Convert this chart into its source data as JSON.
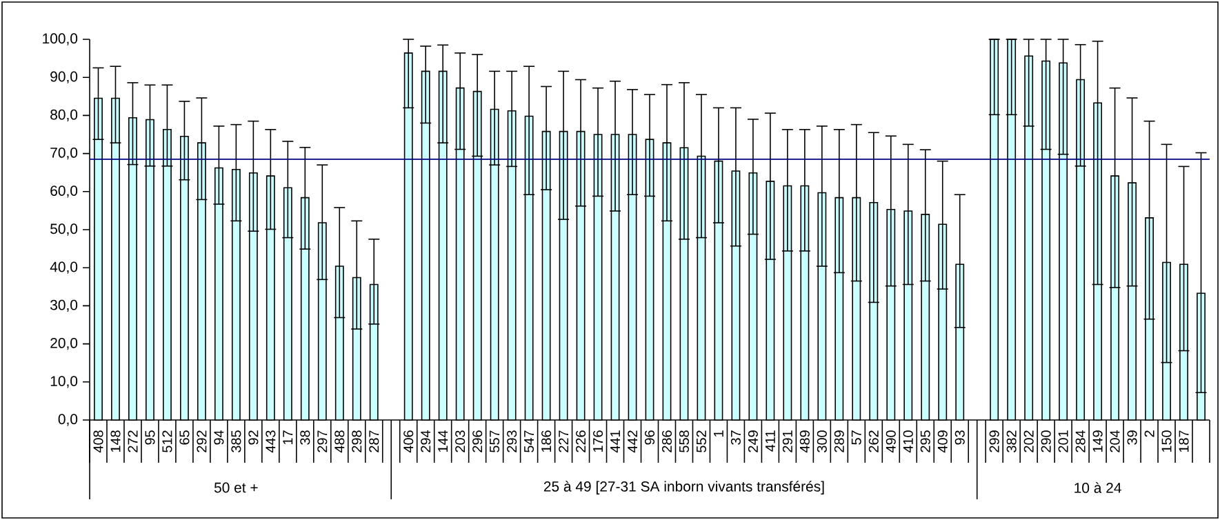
{
  "chart_data": {
    "type": "bar",
    "categories": [
      "408",
      "148",
      "272",
      "95",
      "512",
      "65",
      "292",
      "94",
      "385",
      "92",
      "443",
      "17",
      "38",
      "297",
      "488",
      "298",
      "287",
      null,
      "406",
      "294",
      "144",
      "203",
      "296",
      "557",
      "293",
      "547",
      "186",
      "227",
      "226",
      "176",
      "441",
      "442",
      "96",
      "286",
      "558",
      "552",
      "1",
      "37",
      "249",
      "411",
      "291",
      "489",
      "300",
      "289",
      "57",
      "262",
      "490",
      "410",
      "295",
      "409",
      "93",
      null,
      "299",
      "382",
      "202",
      "290",
      "201",
      "284",
      "149",
      "204",
      "39",
      "2",
      "150",
      "187",
      null
    ],
    "values": [
      84.5,
      84.5,
      79.4,
      78.9,
      76.3,
      74.5,
      72.8,
      66.2,
      65.8,
      64.9,
      64.1,
      61.0,
      58.4,
      51.8,
      40.4,
      37.4,
      35.6,
      null,
      96.4,
      91.6,
      91.6,
      87.2,
      86.3,
      81.6,
      81.2,
      79.8,
      75.8,
      75.8,
      75.8,
      75.0,
      75.0,
      75.0,
      73.7,
      72.8,
      71.5,
      69.3,
      68.0,
      65.4,
      64.9,
      62.7,
      61.5,
      61.5,
      59.7,
      58.4,
      58.4,
      57.1,
      55.3,
      54.9,
      54.0,
      51.4,
      40.9,
      null,
      100,
      100,
      95.6,
      94.3,
      93.8,
      89.4,
      83.3,
      64.1,
      62.3,
      53.1,
      41.4,
      40.9,
      33.3
    ],
    "errors": [
      [
        73.7,
        92.5
      ],
      [
        72.8,
        92.9
      ],
      [
        67.1,
        88.6
      ],
      [
        66.7,
        88.0
      ],
      [
        66.7,
        88.0
      ],
      [
        63.1,
        83.7
      ],
      [
        57.9,
        84.6
      ],
      [
        56.7,
        77.2
      ],
      [
        52.3,
        77.6
      ],
      [
        49.6,
        78.5
      ],
      [
        50.1,
        76.3
      ],
      [
        47.9,
        73.2
      ],
      [
        44.9,
        71.6
      ],
      [
        36.9,
        67.0
      ],
      [
        26.9,
        55.8
      ],
      [
        23.9,
        52.3
      ],
      [
        25.2,
        47.5
      ],
      null,
      [
        82.0,
        100
      ],
      [
        78.0,
        98.2
      ],
      [
        72.8,
        98.5
      ],
      [
        71.1,
        96.4
      ],
      [
        69.3,
        96.0
      ],
      [
        67.0,
        91.6
      ],
      [
        66.6,
        91.6
      ],
      [
        59.2,
        92.9
      ],
      [
        60.5,
        87.6
      ],
      [
        52.7,
        91.6
      ],
      [
        56.2,
        89.4
      ],
      [
        58.8,
        87.2
      ],
      [
        54.9,
        89.0
      ],
      [
        59.2,
        86.8
      ],
      [
        58.8,
        85.5
      ],
      [
        52.3,
        88.1
      ],
      [
        47.5,
        88.6
      ],
      [
        47.9,
        85.5
      ],
      [
        51.8,
        82.0
      ],
      [
        45.7,
        82.0
      ],
      [
        48.8,
        79.0
      ],
      [
        42.2,
        80.6
      ],
      [
        44.4,
        76.3
      ],
      [
        44.4,
        76.3
      ],
      [
        40.4,
        77.2
      ],
      [
        38.7,
        76.3
      ],
      [
        36.5,
        77.6
      ],
      [
        30.9,
        75.5
      ],
      [
        35.2,
        74.6
      ],
      [
        35.6,
        72.4
      ],
      [
        36.5,
        71.0
      ],
      [
        34.4,
        68.0
      ],
      [
        24.3,
        59.2
      ],
      null,
      [
        80.2,
        100
      ],
      [
        80.2,
        100
      ],
      [
        77.2,
        100
      ],
      [
        71.1,
        100
      ],
      [
        69.8,
        100
      ],
      [
        66.7,
        98.6
      ],
      [
        35.6,
        99.5
      ],
      [
        34.8,
        87.2
      ],
      [
        35.2,
        84.6
      ],
      [
        26.5,
        78.5
      ],
      [
        15.1,
        72.4
      ],
      [
        18.2,
        66.6
      ],
      [
        7.2,
        70.2
      ]
    ],
    "color": "#ccffff",
    "ylim": [
      0,
      100
    ],
    "yticks": [
      {
        "value": 0,
        "label": "0,0"
      },
      {
        "value": 10,
        "label": "10,0"
      },
      {
        "value": 20,
        "label": "20,0"
      },
      {
        "value": 30,
        "label": "30,0"
      },
      {
        "value": 40,
        "label": "40,0"
      },
      {
        "value": 50,
        "label": "50,0"
      },
      {
        "value": 60,
        "label": "60,0"
      },
      {
        "value": 70,
        "label": "70,0"
      },
      {
        "value": 80,
        "label": "80,0"
      },
      {
        "value": 90,
        "label": "90,0"
      },
      {
        "value": 100,
        "label": "100,0"
      }
    ],
    "ref_lines": [
      {
        "axis": "y",
        "value": 68.5,
        "color": "#000080"
      }
    ],
    "annotations": [
      "50 et +",
      "25 à 49 [27-31 SA inborn vivants transférés]",
      "10 à 24"
    ],
    "grid": false
  }
}
